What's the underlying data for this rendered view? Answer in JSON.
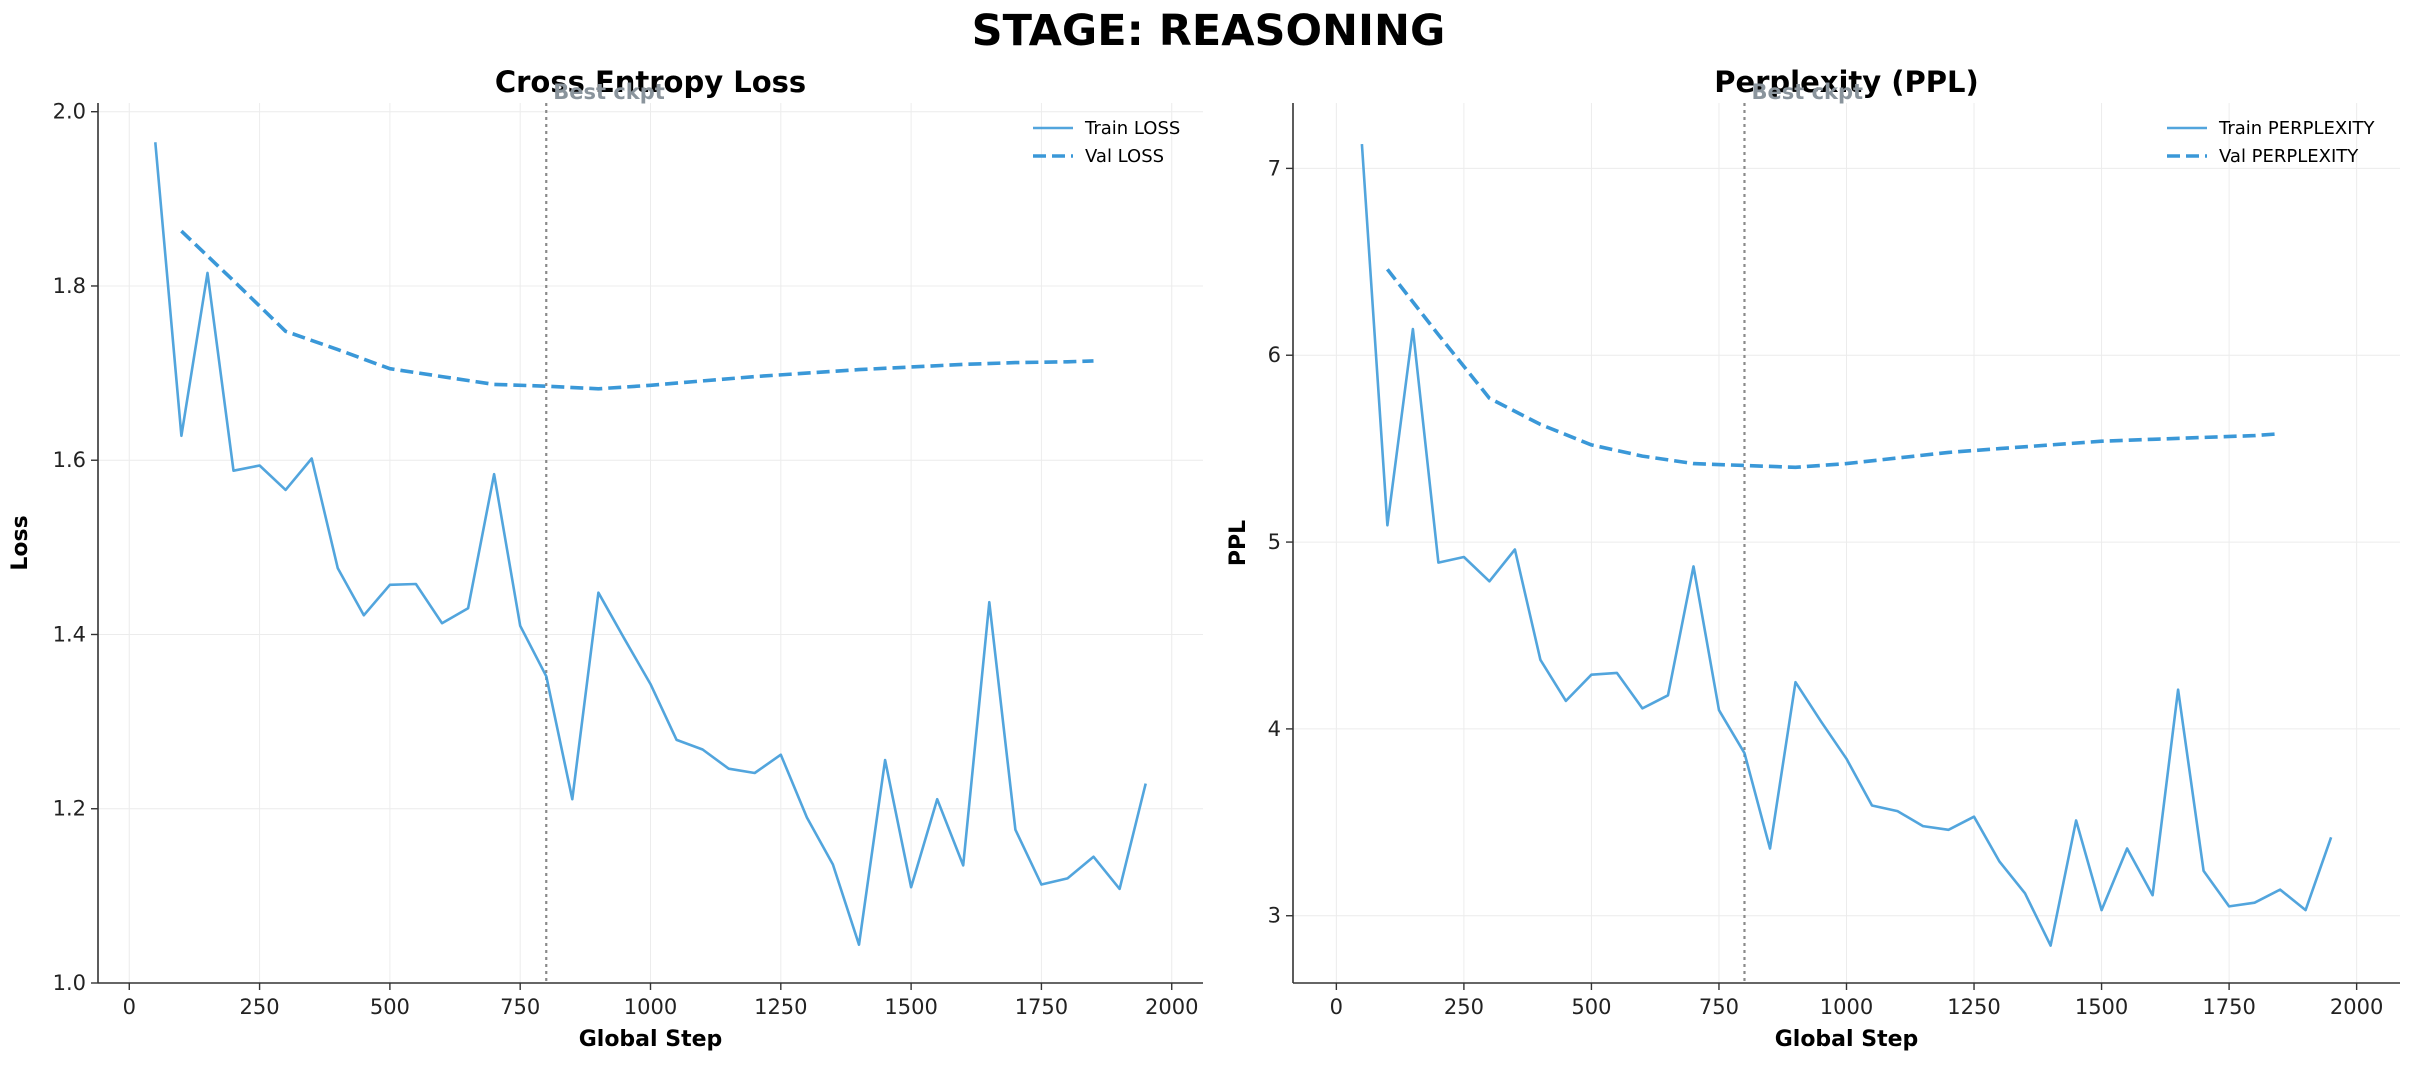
{
  "title": "STAGE: REASONING",
  "colors": {
    "series": "#3a98d8",
    "grid": "#ececec",
    "axis": "#333333",
    "marker": "#8a8a8a",
    "annotation": "#8a949c"
  },
  "chart_data": [
    {
      "type": "line",
      "title": "Cross Entropy Loss",
      "xlabel": "Global Step",
      "ylabel": "Loss",
      "xlim": [
        -60,
        2060
      ],
      "ylim": [
        1.0,
        2.01
      ],
      "xticks": [
        0,
        250,
        500,
        750,
        1000,
        1250,
        1500,
        1750,
        2000
      ],
      "yticks": [
        1.0,
        1.2,
        1.4,
        1.6,
        1.8,
        2.0
      ],
      "ytick_labels": [
        "1.0",
        "1.2",
        "1.4",
        "1.6",
        "1.8",
        "2.0"
      ],
      "grid": true,
      "legend": "top-right",
      "vline": {
        "x": 800,
        "label": "Best ckpt"
      },
      "series": [
        {
          "name": "Train LOSS",
          "style": "solid",
          "x": [
            50,
            100,
            150,
            200,
            250,
            300,
            350,
            400,
            450,
            500,
            550,
            600,
            650,
            700,
            750,
            800,
            850,
            900,
            950,
            1000,
            1050,
            1100,
            1150,
            1200,
            1250,
            1300,
            1350,
            1400,
            1450,
            1500,
            1550,
            1600,
            1650,
            1700,
            1750,
            1800,
            1850,
            1900,
            1950
          ],
          "y": [
            1.965,
            1.628,
            1.815,
            1.588,
            1.594,
            1.566,
            1.602,
            1.476,
            1.422,
            1.457,
            1.458,
            1.413,
            1.43,
            1.584,
            1.41,
            1.352,
            1.211,
            1.448,
            1.395,
            1.343,
            1.279,
            1.268,
            1.246,
            1.241,
            1.262,
            1.19,
            1.136,
            1.044,
            1.256,
            1.11,
            1.211,
            1.135,
            1.437,
            1.176,
            1.113,
            1.12,
            1.145,
            1.108,
            1.229
          ]
        },
        {
          "name": "Val LOSS",
          "style": "dashed",
          "x": [
            100,
            200,
            300,
            400,
            500,
            600,
            700,
            800,
            900,
            1000,
            1100,
            1200,
            1300,
            1400,
            1500,
            1600,
            1700,
            1800,
            1850
          ],
          "y": [
            1.863,
            1.806,
            1.748,
            1.727,
            1.705,
            1.696,
            1.687,
            1.685,
            1.682,
            1.686,
            1.691,
            1.696,
            1.7,
            1.704,
            1.707,
            1.71,
            1.712,
            1.713,
            1.714
          ]
        }
      ]
    },
    {
      "type": "line",
      "title": "Perplexity (PPL)",
      "xlabel": "Global Step",
      "ylabel": "PPL",
      "xlim": [
        -85,
        2085
      ],
      "ylim": [
        2.64,
        7.35
      ],
      "xticks": [
        0,
        250,
        500,
        750,
        1000,
        1250,
        1500,
        1750,
        2000
      ],
      "yticks": [
        3,
        4,
        5,
        6,
        7
      ],
      "ytick_labels": [
        "3",
        "4",
        "5",
        "6",
        "7"
      ],
      "grid": true,
      "legend": "top-right",
      "vline": {
        "x": 800,
        "label": "Best ckpt"
      },
      "series": [
        {
          "name": "Train PERPLEXITY",
          "style": "solid",
          "x": [
            50,
            100,
            150,
            200,
            250,
            300,
            350,
            400,
            450,
            500,
            550,
            600,
            650,
            700,
            750,
            800,
            850,
            900,
            950,
            1000,
            1050,
            1100,
            1150,
            1200,
            1250,
            1300,
            1350,
            1400,
            1450,
            1500,
            1550,
            1600,
            1650,
            1700,
            1750,
            1800,
            1850,
            1900,
            1950
          ],
          "y": [
            7.13,
            5.09,
            6.14,
            4.89,
            4.92,
            4.79,
            4.96,
            4.37,
            4.15,
            4.29,
            4.3,
            4.11,
            4.18,
            4.87,
            4.1,
            3.87,
            3.36,
            4.25,
            4.04,
            3.84,
            3.59,
            3.56,
            3.48,
            3.46,
            3.53,
            3.29,
            3.12,
            2.84,
            3.51,
            3.03,
            3.36,
            3.11,
            4.21,
            3.24,
            3.05,
            3.07,
            3.14,
            3.03,
            3.42
          ]
        },
        {
          "name": "Val PERPLEXITY",
          "style": "dashed",
          "x": [
            100,
            200,
            300,
            400,
            500,
            600,
            700,
            800,
            900,
            1000,
            1100,
            1200,
            1300,
            1400,
            1500,
            1600,
            1700,
            1800,
            1850
          ],
          "y": [
            6.46,
            6.11,
            5.77,
            5.63,
            5.52,
            5.46,
            5.42,
            5.41,
            5.4,
            5.42,
            5.45,
            5.48,
            5.5,
            5.52,
            5.54,
            5.55,
            5.56,
            5.57,
            5.58
          ]
        }
      ]
    }
  ]
}
